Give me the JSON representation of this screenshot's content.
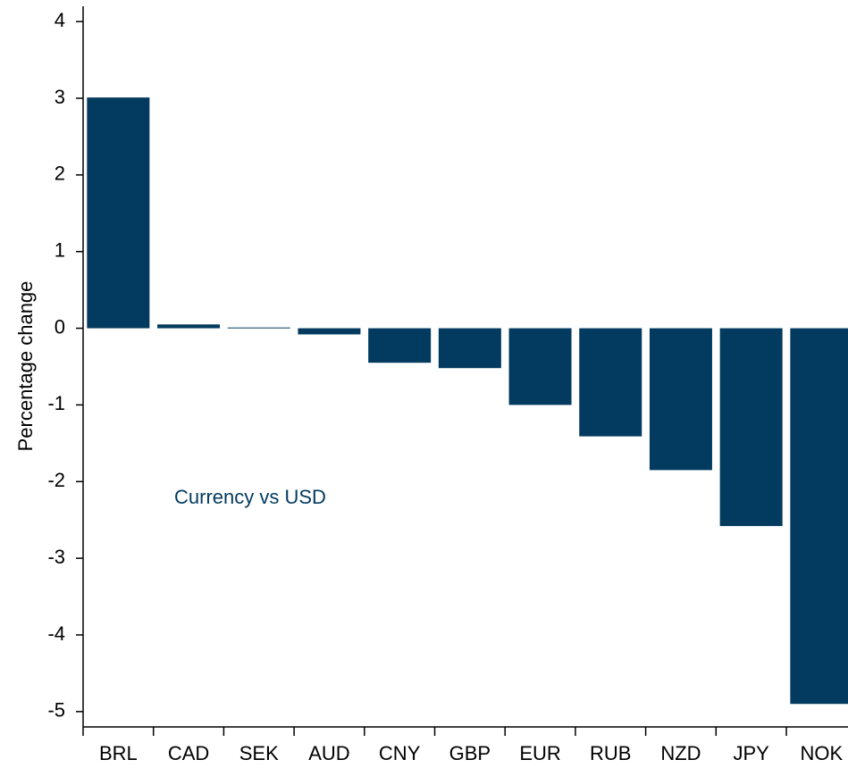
{
  "chart_data": {
    "type": "bar",
    "y_label": "Percentage change",
    "annotation": "Currency vs USD",
    "categories": [
      "BRL",
      "CAD",
      "SEK",
      "AUD",
      "CNY",
      "GBP",
      "EUR",
      "RUB",
      "NZD",
      "JPY",
      "NOK"
    ],
    "values": [
      3.01,
      0.05,
      0.01,
      -0.08,
      -0.45,
      -0.52,
      -1.0,
      -1.41,
      -1.85,
      -2.58,
      -4.9
    ],
    "color": "#033a5f",
    "ylim": [
      -5.2,
      4.2
    ],
    "yticks": [
      -5,
      -4,
      -3,
      -2,
      -1,
      0,
      1,
      2,
      3,
      4
    ],
    "grid": false
  }
}
